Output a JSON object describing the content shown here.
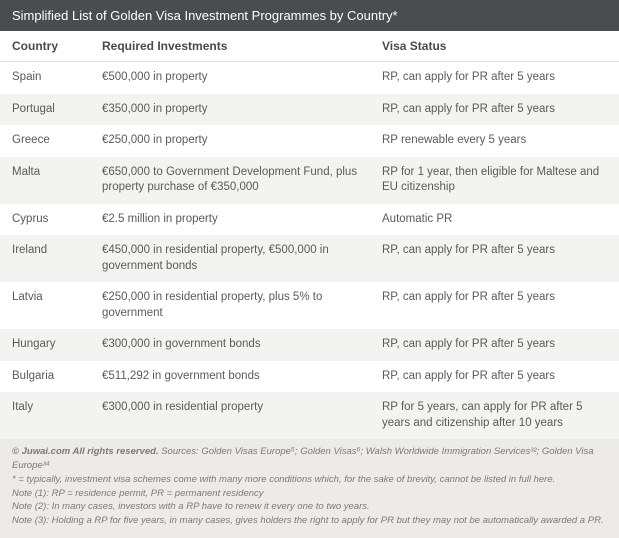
{
  "title": "Simplified List of Golden Visa Investment Programmes by Country*",
  "columns": [
    "Country",
    "Required Investments",
    "Visa Status"
  ],
  "rows": [
    {
      "country": "Spain",
      "investment": "€500,000 in property",
      "status": "RP, can apply for PR after 5 years"
    },
    {
      "country": "Portugal",
      "investment": "€350,000 in property",
      "status": "RP, can apply for PR after 5 years"
    },
    {
      "country": "Greece",
      "investment": "€250,000 in property",
      "status": "RP renewable every 5 years"
    },
    {
      "country": "Malta",
      "investment": "€650,000 to Government Development Fund, plus property purchase of €350,000",
      "status": "RP for 1 year, then eligible for Maltese and EU citizenship"
    },
    {
      "country": "Cyprus",
      "investment": "€2.5 million in property",
      "status": "Automatic PR"
    },
    {
      "country": "Ireland",
      "investment": "€450,000 in residential property, €500,000 in government bonds",
      "status": "RP, can apply for PR after 5 years"
    },
    {
      "country": "Latvia",
      "investment": "€250,000 in residential property, plus 5% to government",
      "status": "RP, can apply for PR after 5 years"
    },
    {
      "country": "Hungary",
      "investment": "€300,000 in government bonds",
      "status": "RP, can apply for PR after 5 years"
    },
    {
      "country": "Bulgaria",
      "investment": "€511,292 in government bonds",
      "status": "RP, can apply for PR after 5 years"
    },
    {
      "country": "Italy",
      "investment": "€300,000 in residential property",
      "status": "RP for 5 years, can apply for PR after 5 years and citizenship after 10 years"
    }
  ],
  "footer": {
    "copyright": "© Juwai.com All rights reserved.",
    "sources": " Sources: Golden Visas Europe⁵; Golden Visas⁶; Walsh Worldwide Immigration Services³²; Golden Visa Europe³⁴",
    "note_star": "* = typically, investment visa schemes come with many more conditions which, for the sake of brevity, cannot be listed in full here.",
    "note1": "Note (1): RP = residence permit, PR = permanent residency",
    "note2": "Note (2): In many cases, investors with a RP have to renew it every one to two years.",
    "note3": "Note (3): Holding a RP for five years, in many cases, gives holders the right to apply for PR but they may not be automatically awarded a PR."
  },
  "style": {
    "title_bg": "#4a4d4f",
    "title_color": "#ffffff",
    "row_odd_bg": "#ffffff",
    "row_even_bg": "#f3f3f2",
    "footer_bg": "#ecebea",
    "text_color": "#5a5a5a",
    "footer_text_color": "#7a7a78",
    "font_family": "Arial, Helvetica, sans-serif",
    "title_fontsize": 13,
    "header_fontsize": 12,
    "body_fontsize": 11.5,
    "footer_fontsize": 9.5
  }
}
